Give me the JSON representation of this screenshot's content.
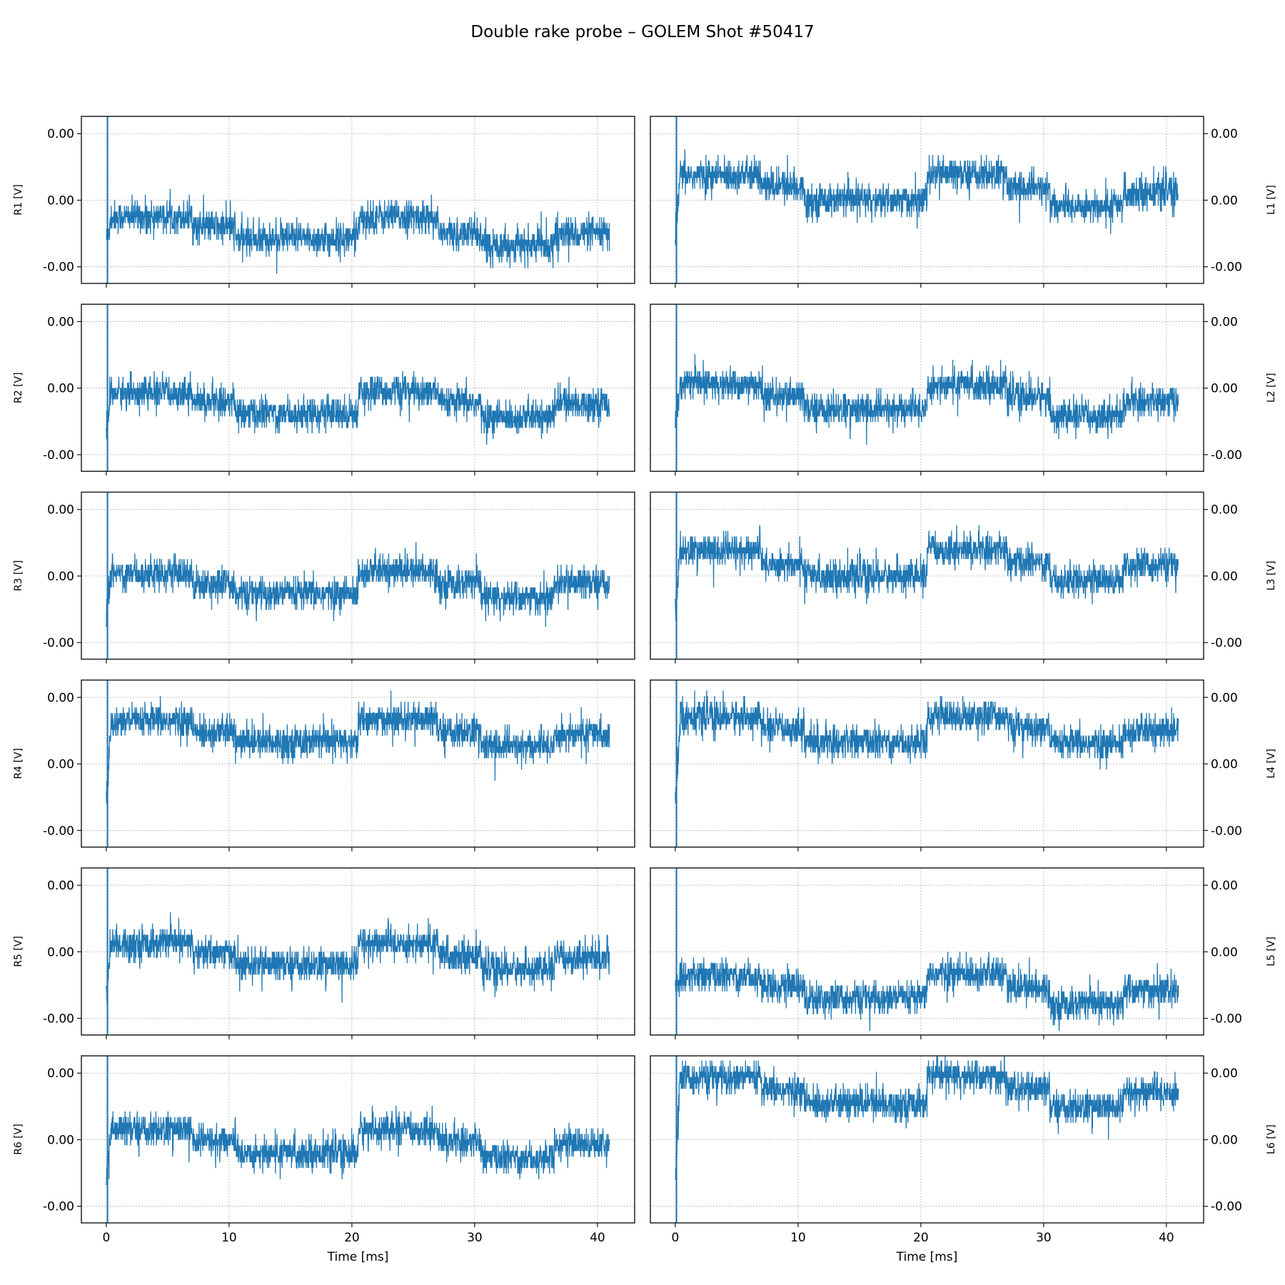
{
  "title": "Double rake probe – GOLEM Shot #50417",
  "chart_data": {
    "type": "line",
    "title": "Double rake probe – GOLEM Shot #50417",
    "xlabel": "Time [ms]",
    "xlim": [
      -2.03,
      43.03
    ],
    "xticks": [
      0,
      10,
      20,
      30,
      40
    ],
    "xtick_labels": [
      "0",
      "10",
      "20",
      "30",
      "40"
    ],
    "ylim": [
      -0.00125,
      0.00126
    ],
    "yticks": [
      0.001,
      0.0,
      -0.001
    ],
    "ytick_labels": [
      "0.00",
      "0.00",
      "-0.00"
    ],
    "grid": true,
    "line_color": "#1f77b4",
    "t_end": 41.0,
    "spike_time": 0.1,
    "segment_bounds_ms": [
      0,
      7,
      10.5,
      20.5,
      27,
      30.5,
      36.5,
      41
    ],
    "noise_std": 0.00012,
    "layout": "6 rows x 2 columns, shared x",
    "series": [
      {
        "name": "R1",
        "ylabel": "R1 [V]",
        "column": "left",
        "segment_levels": [
          -0.00025,
          -0.0004,
          -0.00058,
          -0.00025,
          -0.0005,
          -0.00067,
          -0.0005
        ]
      },
      {
        "name": "L1",
        "ylabel": "L1 [V]",
        "column": "right",
        "segment_levels": [
          0.00037,
          0.00021,
          0.0,
          0.00039,
          0.00018,
          -9e-05,
          0.00012
        ]
      },
      {
        "name": "R2",
        "ylabel": "R2 [V]",
        "column": "left",
        "segment_levels": [
          -7e-05,
          -0.0002,
          -0.00038,
          -5e-05,
          -0.00022,
          -0.00044,
          -0.00022
        ]
      },
      {
        "name": "L2",
        "ylabel": "L2 [V]",
        "column": "right",
        "segment_levels": [
          5e-05,
          -0.00013,
          -0.00032,
          5e-05,
          -0.00013,
          -0.00042,
          -0.0002
        ]
      },
      {
        "name": "R3",
        "ylabel": "R3 [V]",
        "column": "left",
        "segment_levels": [
          4e-05,
          -0.00012,
          -0.00027,
          7e-05,
          -0.00011,
          -0.00033,
          -0.00011
        ]
      },
      {
        "name": "L3",
        "ylabel": "L3 [V]",
        "column": "right",
        "segment_levels": [
          0.00038,
          0.00018,
          0.0,
          0.0004,
          0.00021,
          -6e-05,
          0.00016
        ]
      },
      {
        "name": "R4",
        "ylabel": "R4 [V]",
        "column": "left",
        "segment_levels": [
          0.00064,
          0.00048,
          0.00033,
          0.00066,
          0.00048,
          0.00027,
          0.00045
        ]
      },
      {
        "name": "L4",
        "ylabel": "L4 [V]",
        "column": "right",
        "segment_levels": [
          0.0007,
          0.00054,
          0.00033,
          0.00072,
          0.00054,
          0.0003,
          0.00049
        ]
      },
      {
        "name": "R5",
        "ylabel": "R5 [V]",
        "column": "left",
        "segment_levels": [
          0.00013,
          -1e-05,
          -0.0002,
          0.00013,
          -5e-05,
          -0.00026,
          -9e-05
        ]
      },
      {
        "name": "L5",
        "ylabel": "L5 [V]",
        "column": "right",
        "segment_levels": [
          -0.00036,
          -0.00052,
          -0.0007,
          -0.00033,
          -0.00054,
          -0.00079,
          -0.00058
        ]
      },
      {
        "name": "R6",
        "ylabel": "R6 [V]",
        "column": "left",
        "segment_levels": [
          0.00015,
          -2e-05,
          -0.0002,
          0.00015,
          -2e-05,
          -0.00027,
          -6e-05
        ]
      },
      {
        "name": "L6",
        "ylabel": "L6 [V]",
        "column": "right",
        "segment_levels": [
          0.00093,
          0.00074,
          0.00055,
          0.00095,
          0.00076,
          0.00049,
          0.00071
        ]
      }
    ]
  }
}
